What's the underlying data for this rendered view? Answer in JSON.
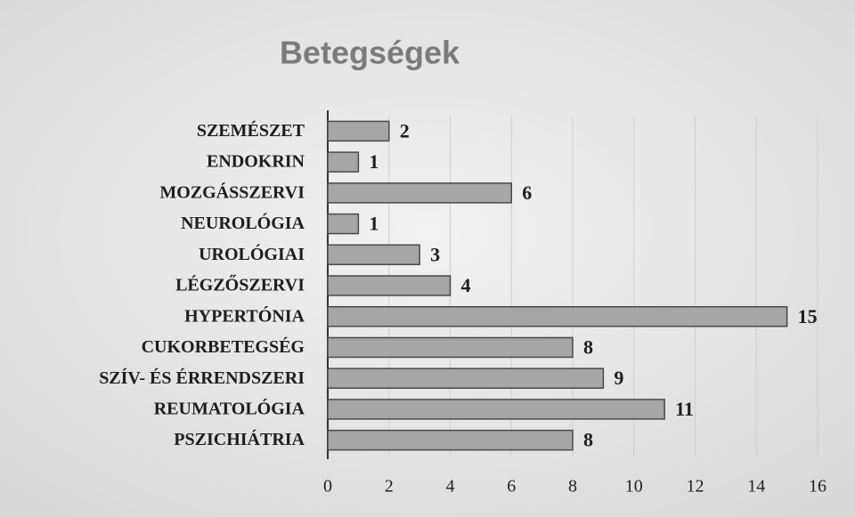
{
  "chart_data": {
    "type": "bar",
    "orientation": "horizontal",
    "title": "Betegségek",
    "categories": [
      "SZEMÉSZET",
      "ENDOKRIN",
      "MOZGÁSSZERVI",
      "NEUROLÓGIA",
      "UROLÓGIAI",
      "LÉGZŐSZERVI",
      "HYPERTÓNIA",
      "CUKORBETEGSÉG",
      "SZÍV- ÉS ÉRRENDSZERI",
      "REUMATOLÓGIA",
      "PSZICHIÁTRIA"
    ],
    "values": [
      2,
      1,
      6,
      1,
      3,
      4,
      15,
      8,
      9,
      11,
      8
    ],
    "color": "#a6a6a6",
    "xlim": [
      0,
      16
    ],
    "xticks": [
      0,
      2,
      4,
      6,
      8,
      10,
      12,
      14,
      16
    ],
    "grid": true
  }
}
